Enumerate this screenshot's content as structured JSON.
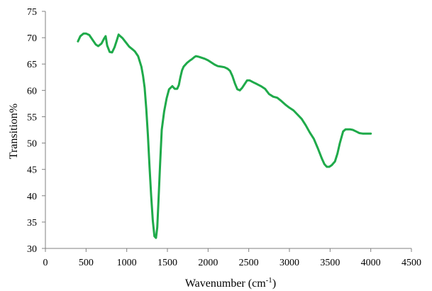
{
  "chart_data": {
    "type": "line",
    "title": "",
    "xlabel": "Wavenumber (cm",
    "xlabel_sup": "-1",
    "xlabel_close": ")",
    "ylabel": "Transition%",
    "xlim": [
      0,
      4500
    ],
    "ylim": [
      30,
      75
    ],
    "x_ticks": [
      "0",
      "500",
      "1000",
      "1500",
      "2000",
      "2500",
      "3000",
      "3500",
      "4000",
      "4500"
    ],
    "y_ticks": [
      "30",
      "35",
      "40",
      "45",
      "50",
      "55",
      "60",
      "65",
      "70",
      "75"
    ],
    "grid": false,
    "legend": "none",
    "line_color": "#1faa4a",
    "series": [
      {
        "x": [
          400,
          430,
          470,
          500,
          540,
          580,
          620,
          650,
          690,
          720,
          740,
          760,
          790,
          820,
          850,
          880,
          900,
          920,
          950,
          990,
          1030,
          1070,
          1100,
          1140,
          1180,
          1200,
          1220,
          1240,
          1260,
          1280,
          1300,
          1320,
          1340,
          1360,
          1375,
          1390,
          1410,
          1430,
          1460,
          1490,
          1520,
          1560,
          1590,
          1620,
          1640,
          1660,
          1680,
          1700,
          1740,
          1780,
          1800,
          1830,
          1850,
          1880,
          1920,
          1960,
          2000,
          2040,
          2080,
          2120,
          2160,
          2200,
          2240,
          2270,
          2300,
          2330,
          2360,
          2390,
          2420,
          2450,
          2480,
          2510,
          2560,
          2600,
          2650,
          2700,
          2750,
          2800,
          2850,
          2900,
          2950,
          3000,
          3050,
          3100,
          3150,
          3200,
          3250,
          3300,
          3350,
          3400,
          3430,
          3460,
          3490,
          3520,
          3560,
          3590,
          3620,
          3660,
          3690,
          3720,
          3750,
          3780,
          3820,
          3860,
          3900,
          3950,
          4000
        ],
        "y": [
          69.3,
          70.3,
          70.8,
          70.8,
          70.5,
          69.6,
          68.7,
          68.4,
          68.9,
          69.8,
          70.3,
          68.5,
          67.3,
          67.2,
          68.2,
          69.6,
          70.6,
          70.3,
          69.9,
          69.1,
          68.3,
          67.8,
          67.4,
          66.5,
          64.5,
          62.8,
          60.5,
          56.5,
          51.5,
          45.5,
          40.0,
          35.3,
          32.3,
          32.0,
          34.0,
          39.0,
          46.0,
          52.5,
          56.0,
          58.5,
          60.2,
          60.8,
          60.3,
          60.3,
          61.0,
          62.5,
          63.8,
          64.5,
          65.2,
          65.7,
          65.9,
          66.3,
          66.5,
          66.4,
          66.2,
          66.0,
          65.7,
          65.3,
          64.9,
          64.6,
          64.5,
          64.4,
          64.1,
          63.7,
          62.7,
          61.3,
          60.2,
          60.0,
          60.5,
          61.2,
          61.9,
          61.9,
          61.5,
          61.2,
          60.8,
          60.3,
          59.3,
          58.8,
          58.6,
          58.0,
          57.3,
          56.7,
          56.2,
          55.4,
          54.6,
          53.4,
          52.0,
          50.8,
          49.0,
          47.0,
          46.0,
          45.5,
          45.5,
          45.8,
          46.5,
          48.0,
          50.0,
          52.2,
          52.6,
          52.6,
          52.6,
          52.5,
          52.2,
          51.9,
          51.8,
          51.8,
          51.8
        ]
      }
    ]
  }
}
